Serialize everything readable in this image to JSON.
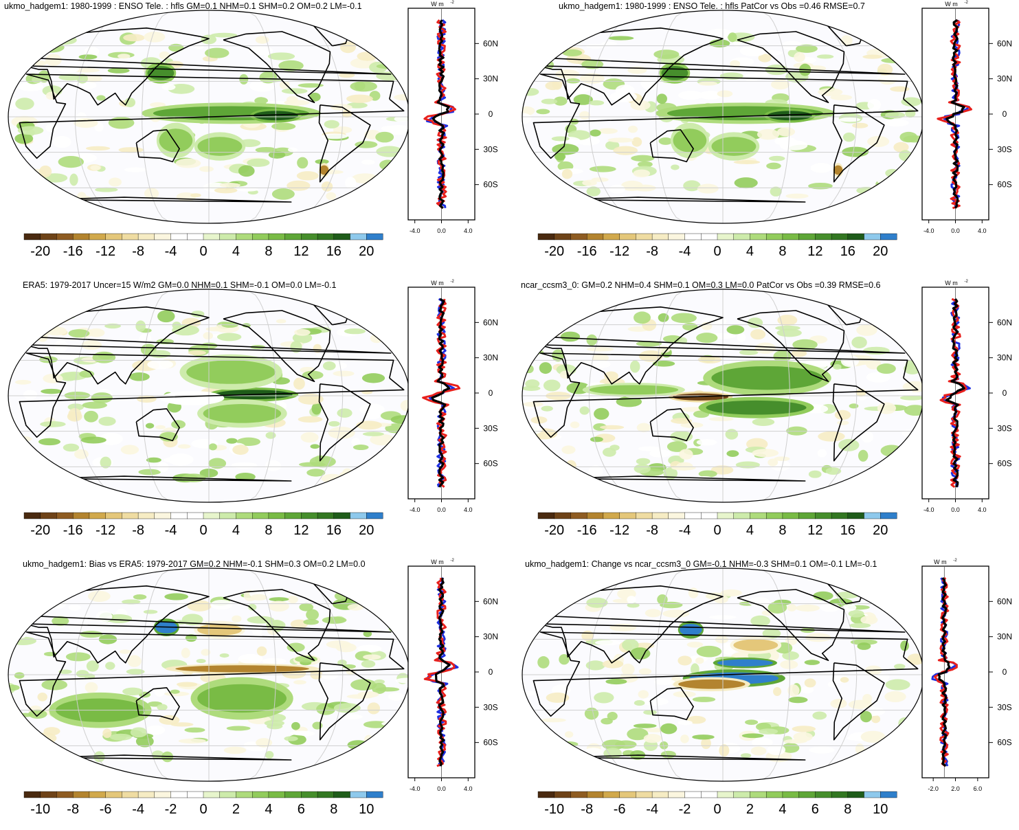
{
  "palette": {
    "anomaly_colors": [
      "#4a2a10",
      "#6e4318",
      "#8e5c22",
      "#b3842f",
      "#d1a94c",
      "#e4c77a",
      "#efdca2",
      "#f6ecc4",
      "#fbf6df",
      "#ffffff",
      "#ffffff",
      "#e7f5cc",
      "#cdebab",
      "#aedb7c",
      "#92cc5c",
      "#79bb45",
      "#5ea637",
      "#468e2c",
      "#337722",
      "#1f5c1a",
      "#8ec9ec",
      "#2f7fcb"
    ],
    "model_line": "#e8201c",
    "obs_line": "#1e2fe0",
    "mean_line": "#000000",
    "land_outline": "#000000",
    "grid_line": "#cfcfcf",
    "tropical_band": "#e9eb9a"
  },
  "profile_unit": "W m",
  "profile_unit_exp": "-2",
  "lat_ticks": [
    "60N",
    "30N",
    "0",
    "30S",
    "60S"
  ],
  "chart_data": [
    {
      "id": "p1",
      "type": "heatmap",
      "title": "ukmo_hadgem1: 1980-1999 : ENSO Tele. : hfls GM=0.1 NHM=0.1 SHM=0.2 OM=0.2 LM=-0.1",
      "colorbar_labels": [
        "-20",
        "-16",
        "-12",
        "-8",
        "-4",
        "0",
        "4",
        "8",
        "12",
        "16",
        "20"
      ],
      "profile_xtick_labels": [
        "-4.0",
        "0.0",
        "4.0"
      ],
      "profile_xlim": [
        -5,
        5
      ],
      "profile_dx": 0,
      "field_blobs": [
        {
          "lon": -160,
          "lat": 3,
          "rx": 70,
          "ry": 6,
          "v": 10
        },
        {
          "lon": -120,
          "lat": 1,
          "rx": 20,
          "ry": 4,
          "v": 16
        },
        {
          "lon": 135,
          "lat": 37,
          "rx": 12,
          "ry": 6,
          "v": 12
        },
        {
          "lon": 150,
          "lat": -20,
          "rx": 15,
          "ry": 10,
          "v": 6
        },
        {
          "lon": -170,
          "lat": -25,
          "rx": 20,
          "ry": 8,
          "v": 6
        },
        {
          "lon": -70,
          "lat": -45,
          "rx": 4,
          "ry": 4,
          "v": -16
        }
      ]
    },
    {
      "id": "p2",
      "type": "heatmap",
      "title": "ukmo_hadgem1: 1980-1999 : ENSO Tele. : hfls PatCor vs Obs =0.46 RMSE=0.7",
      "colorbar_labels": [
        "-20",
        "-16",
        "-12",
        "-8",
        "-4",
        "0",
        "4",
        "8",
        "12",
        "16",
        "20"
      ],
      "profile_xtick_labels": [
        "-4.0",
        "0.0",
        "4.0"
      ],
      "profile_xlim": [
        -5,
        5
      ],
      "profile_dx": 0,
      "field_blobs": [
        {
          "lon": -160,
          "lat": 3,
          "rx": 70,
          "ry": 6,
          "v": 10
        },
        {
          "lon": -120,
          "lat": 1,
          "rx": 20,
          "ry": 4,
          "v": 16
        },
        {
          "lon": 135,
          "lat": 37,
          "rx": 12,
          "ry": 6,
          "v": 12
        },
        {
          "lon": 150,
          "lat": -20,
          "rx": 15,
          "ry": 10,
          "v": 6
        },
        {
          "lon": -170,
          "lat": -25,
          "rx": 20,
          "ry": 8,
          "v": 6
        },
        {
          "lon": -70,
          "lat": -45,
          "rx": 4,
          "ry": 4,
          "v": -16
        }
      ]
    },
    {
      "id": "p3",
      "type": "heatmap",
      "title": "ERA5: 1979-2017 Uncer=15 W/m2 GM=0.0 NHM=0.1 SHM=-0.1 OM=0.0 LM=-0.1",
      "colorbar_labels": [
        "-20",
        "-16",
        "-12",
        "-8",
        "-4",
        "0",
        "4",
        "8",
        "12",
        "16",
        "20"
      ],
      "profile_xtick_labels": [
        "-4.0",
        "0.0",
        "4.0"
      ],
      "profile_xlim": [
        -5,
        5
      ],
      "profile_dx": 0,
      "field_blobs": [
        {
          "lon": -140,
          "lat": 1,
          "rx": 35,
          "ry": 4,
          "v": 16
        },
        {
          "lon": -160,
          "lat": 20,
          "rx": 40,
          "ry": 10,
          "v": 6
        },
        {
          "lon": -150,
          "lat": -15,
          "rx": 35,
          "ry": 8,
          "v": 6
        },
        {
          "lon": 165,
          "lat": -2,
          "rx": 25,
          "ry": 4,
          "v": -4
        }
      ]
    },
    {
      "id": "p4",
      "type": "heatmap",
      "title": "ncar_ccsm3_0: GM=0.2 NHM=0.4 SHM=0.1 OM=0.3 LM=0.0 PatCor vs Obs =0.39 RMSE=0.6",
      "colorbar_labels": [
        "-20",
        "-16",
        "-12",
        "-8",
        "-4",
        "0",
        "4",
        "8",
        "12",
        "16",
        "20"
      ],
      "profile_xtick_labels": [
        "-4.0",
        "0.0",
        "4.0"
      ],
      "profile_xlim": [
        -5,
        5
      ],
      "profile_dx": 0,
      "field_blobs": [
        {
          "lon": 160,
          "lat": -1,
          "rx": 25,
          "ry": 3,
          "v": -20
        },
        {
          "lon": -140,
          "lat": 15,
          "rx": 50,
          "ry": 10,
          "v": 10
        },
        {
          "lon": -150,
          "lat": -10,
          "rx": 45,
          "ry": 6,
          "v": 12
        },
        {
          "lon": 100,
          "lat": 5,
          "rx": 40,
          "ry": 4,
          "v": 6
        }
      ]
    },
    {
      "id": "p5",
      "type": "heatmap",
      "title": "ukmo_hadgem1: Bias vs ERA5: 1979-2017 GM=0.2 NHM=-0.1 SHM=0.3 OM=0.2 LM=0.0",
      "colorbar_labels": [
        "-10",
        "-8",
        "-6",
        "-4",
        "-2",
        "0",
        "2",
        "4",
        "6",
        "8",
        "10"
      ],
      "profile_xtick_labels": [
        "-4.0",
        "0.0",
        "4.0"
      ],
      "profile_xlim": [
        -5,
        5
      ],
      "profile_dx": 0,
      "field_blobs": [
        {
          "lon": -150,
          "lat": 5,
          "rx": 60,
          "ry": 3,
          "v": -8
        },
        {
          "lon": -170,
          "lat": 38,
          "rx": 20,
          "ry": 5,
          "v": -6
        },
        {
          "lon": 140,
          "lat": 40,
          "rx": 10,
          "ry": 5,
          "v": 10
        },
        {
          "lon": -150,
          "lat": -20,
          "rx": 40,
          "ry": 12,
          "v": 4
        },
        {
          "lon": 80,
          "lat": -30,
          "rx": 40,
          "ry": 10,
          "v": 4
        }
      ]
    },
    {
      "id": "p6",
      "type": "heatmap",
      "title": "ukmo_hadgem1: Change vs ncar_ccsm3_0 GM=-0.1 NHM=-0.3 SHM=0.1 OM=-0.1 LM=-0.1",
      "colorbar_labels": [
        "-10",
        "-8",
        "-6",
        "-4",
        "-2",
        "0",
        "2",
        "4",
        "6",
        "8",
        "10"
      ],
      "profile_xtick_labels": [
        "-2.0",
        "2.0",
        "6.0"
      ],
      "profile_xlim": [
        -4,
        8
      ],
      "profile_dx": 1.5,
      "field_blobs": [
        {
          "lon": -170,
          "lat": -3,
          "rx": 40,
          "ry": 5,
          "v": 10
        },
        {
          "lon": 170,
          "lat": -8,
          "rx": 30,
          "ry": 4,
          "v": -8
        },
        {
          "lon": -160,
          "lat": 10,
          "rx": 25,
          "ry": 3,
          "v": 10
        },
        {
          "lon": 150,
          "lat": 38,
          "rx": 10,
          "ry": 5,
          "v": 10
        },
        {
          "lon": -150,
          "lat": 25,
          "rx": 20,
          "ry": 5,
          "v": -6
        }
      ]
    }
  ]
}
